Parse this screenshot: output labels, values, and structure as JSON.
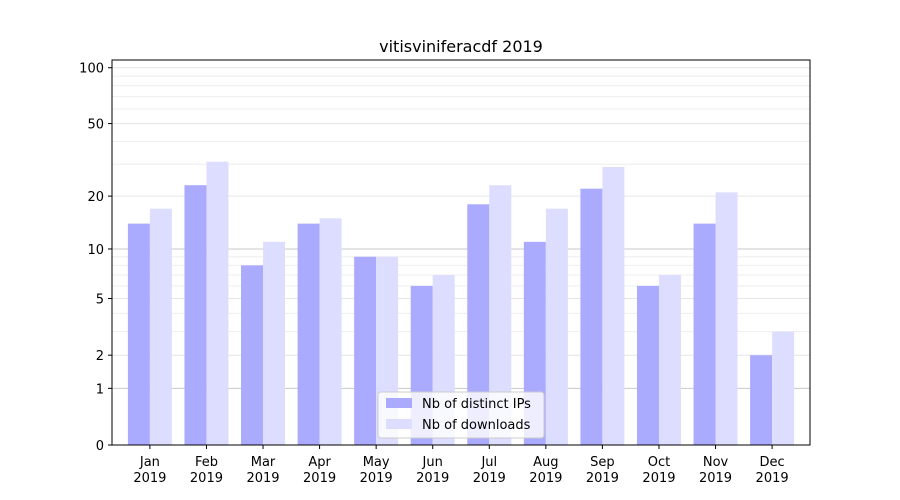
{
  "chart_data": {
    "type": "bar",
    "title": "vitisviniferacdf 2019",
    "xlabel": "",
    "ylabel": "",
    "yscale": "symlog",
    "ylim": [
      0,
      110
    ],
    "yticks": [
      0,
      1,
      2,
      5,
      10,
      20,
      50,
      100
    ],
    "categories": [
      [
        "Jan",
        "2019"
      ],
      [
        "Feb",
        "2019"
      ],
      [
        "Mar",
        "2019"
      ],
      [
        "Apr",
        "2019"
      ],
      [
        "May",
        "2019"
      ],
      [
        "Jun",
        "2019"
      ],
      [
        "Jul",
        "2019"
      ],
      [
        "Aug",
        "2019"
      ],
      [
        "Sep",
        "2019"
      ],
      [
        "Oct",
        "2019"
      ],
      [
        "Nov",
        "2019"
      ],
      [
        "Dec",
        "2019"
      ]
    ],
    "series": [
      {
        "name": "Nb of distinct IPs",
        "color": "#aaaaff",
        "values": [
          14,
          23,
          8,
          14,
          9,
          6,
          18,
          11,
          22,
          6,
          14,
          2
        ]
      },
      {
        "name": "Nb of downloads",
        "color": "#ddddff",
        "values": [
          17,
          31,
          11,
          15,
          9,
          7,
          23,
          17,
          29,
          7,
          21,
          3
        ]
      }
    ],
    "legend_position": "bottom-center",
    "grid": true
  }
}
